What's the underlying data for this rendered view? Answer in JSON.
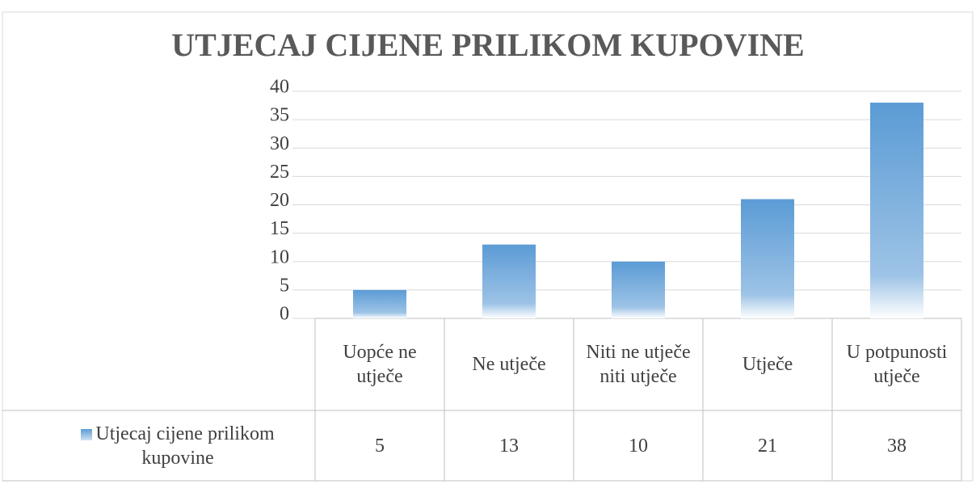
{
  "chart_data": {
    "type": "bar",
    "title": "UTJECAJ CIJENE PRILIKOM KUPOVINE",
    "categories": [
      "Uopće ne utječe",
      "Ne utječe",
      "Niti ne utječe niti utječe",
      "Utječe",
      "U potpunosti utječe"
    ],
    "series": [
      {
        "name": "Utjecaj cijene prilikom kupovine",
        "color": "#5b9bd5",
        "values": [
          5,
          13,
          10,
          21,
          38
        ]
      }
    ],
    "ylim": [
      0,
      40
    ],
    "yticks": [
      0,
      5,
      10,
      15,
      20,
      25,
      30,
      35,
      40
    ],
    "grid": true,
    "data_table": true
  }
}
